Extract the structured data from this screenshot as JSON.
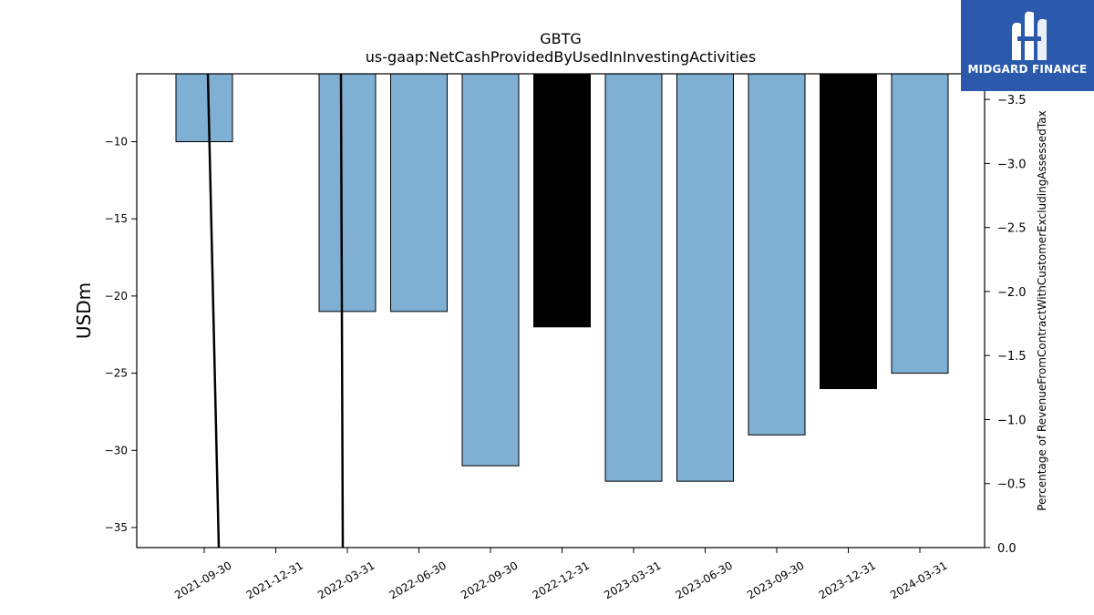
{
  "chart_data": {
    "type": "bar",
    "title": "GBTG",
    "subtitle": "us-gaap:NetCashProvidedByUsedInInvestingActivities",
    "ylabel": "USDm",
    "y2label": "Percentage of RevenueFromContractWithCustomerExcludingAssessedTax",
    "categories": [
      "2021-09-30",
      "2021-12-31",
      "2022-03-31",
      "2022-06-30",
      "2022-09-30",
      "2022-12-31",
      "2023-03-31",
      "2023-06-30",
      "2023-09-30",
      "2023-12-31",
      "2024-03-31"
    ],
    "bars": [
      {
        "x": "2021-09-30",
        "value": -10,
        "color": "#7fb0d4"
      },
      {
        "x": "2022-03-31",
        "value": -21,
        "color": "#7fb0d4"
      },
      {
        "x": "2022-06-30",
        "value": -21,
        "color": "#7fb0d4"
      },
      {
        "x": "2022-09-30",
        "value": -31,
        "color": "#7fb0d4"
      },
      {
        "x": "2022-12-31",
        "value": -22,
        "color": "#000000"
      },
      {
        "x": "2023-03-31",
        "value": -32,
        "color": "#7fb0d4"
      },
      {
        "x": "2023-06-30",
        "value": -32,
        "color": "#7fb0d4"
      },
      {
        "x": "2023-09-30",
        "value": -29,
        "color": "#7fb0d4"
      },
      {
        "x": "2023-12-31",
        "value": -26,
        "color": "#000000"
      },
      {
        "x": "2024-03-31",
        "value": -25,
        "color": "#7fb0d4"
      }
    ],
    "ylim": [
      -36.3,
      -5.6
    ],
    "yticks": [
      -10,
      -15,
      -20,
      -25,
      -30,
      -35
    ],
    "y2lim": [
      0.0,
      -3.7
    ],
    "y2ticks": [
      -3.5,
      -3.0,
      -2.5,
      -2.0,
      -1.5,
      -1.0,
      -0.5,
      0.0
    ],
    "line_segments": [
      {
        "points": [
          {
            "x": "2021-09-30",
            "y2": -3.7
          },
          {
            "x": "2021-09-30",
            "y2": 0.0
          }
        ]
      },
      {
        "points": [
          {
            "x": "2022-03-31",
            "y2": 0.0
          },
          {
            "x": "2022-03-31",
            "y2": -3.7
          }
        ]
      }
    ],
    "line_color": "#000000",
    "grid": false
  },
  "logo": {
    "text": "MIDGARD FINANCE",
    "bg_color": "#2b5aad"
  }
}
